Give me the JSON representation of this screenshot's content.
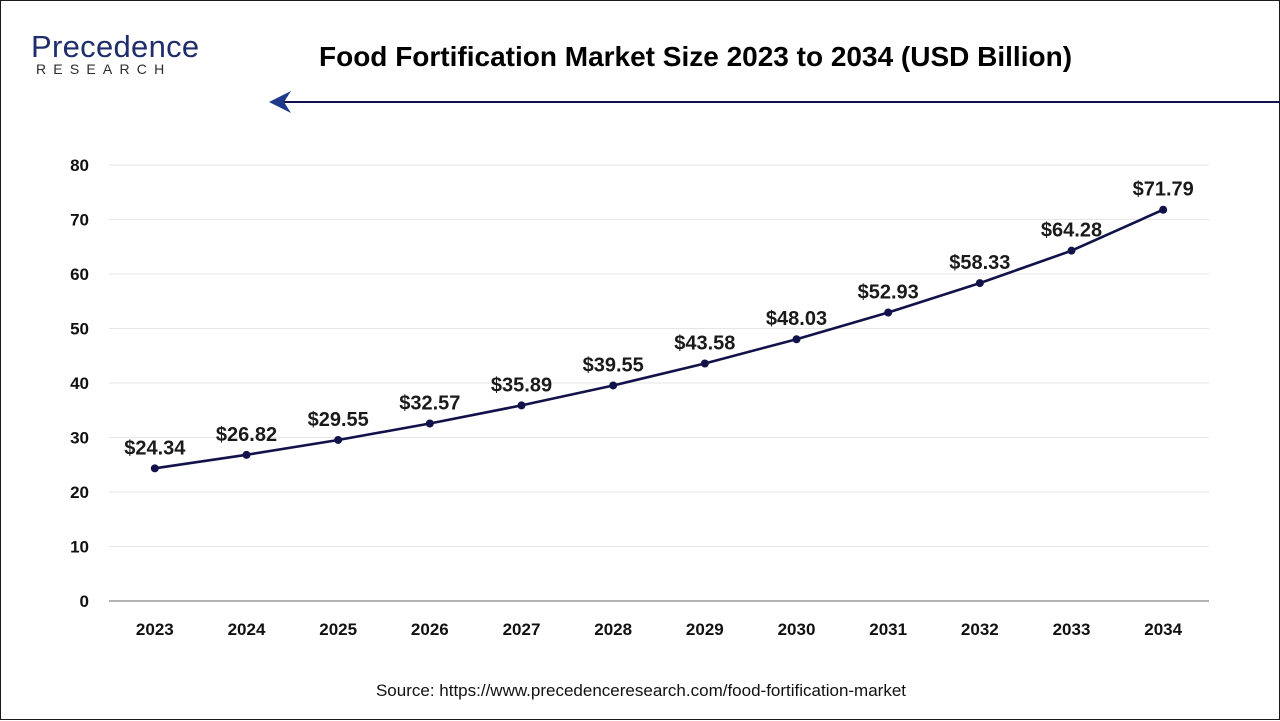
{
  "branding": {
    "logo_word": "Precedence",
    "logo_sub": "RESEARCH",
    "brand_color": "#1f2d6b"
  },
  "title": "Food Fortification Market Size 2023 to 2034 (USD Billion)",
  "source": "Source: https://www.precedenceresearch.com/food-fortification-market",
  "chart_data": {
    "type": "line",
    "title": "Food Fortification Market Size 2023 to 2034 (USD Billion)",
    "xlabel": "",
    "ylabel": "",
    "categories": [
      "2023",
      "2024",
      "2025",
      "2026",
      "2027",
      "2028",
      "2029",
      "2030",
      "2031",
      "2032",
      "2033",
      "2034"
    ],
    "series": [
      {
        "values": [
          24.34,
          26.82,
          29.55,
          32.57,
          35.89,
          39.55,
          43.58,
          48.03,
          52.93,
          58.33,
          64.28,
          71.79
        ],
        "labels": [
          "$24.34",
          "$26.82",
          "$29.55",
          "$32.57",
          "$35.89",
          "$39.55",
          "$43.58",
          "$48.03",
          "$52.93",
          "$58.33",
          "$64.28",
          "$71.79"
        ],
        "color": "#12124a"
      }
    ],
    "ylim": [
      0,
      80
    ],
    "yticks": [
      0,
      10,
      20,
      30,
      40,
      50,
      60,
      70,
      80
    ],
    "grid": true,
    "legend": "none"
  }
}
